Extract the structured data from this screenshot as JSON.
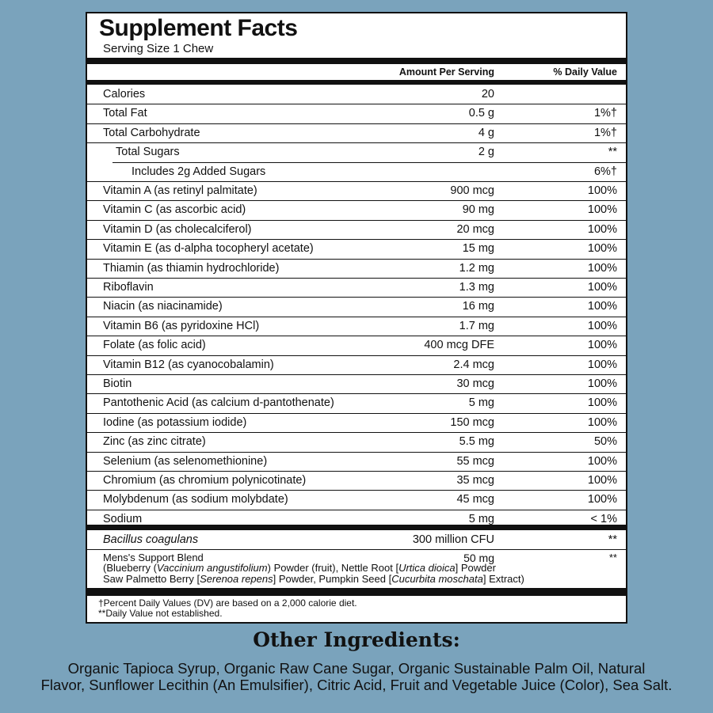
{
  "title": "Supplement Facts",
  "serving_size": "Serving Size 1 Chew",
  "columns": [
    "Amount Per Serving",
    "% Daily Value"
  ],
  "rows": [
    {
      "name": "Calories",
      "amount": "20"
    },
    {
      "name": "Total Fat",
      "amount": "0.5 g",
      "dv": "1%†"
    },
    {
      "name": "Total Carbohydrate",
      "amount": "4 g",
      "dv": "1%†"
    },
    {
      "name": "Total Sugars",
      "amount": "2 g",
      "dv": "**",
      "indent": 1
    },
    {
      "name": "Includes 2g Added Sugars",
      "dv": "6%†",
      "indent": 2
    },
    {
      "name": "Vitamin A (as retinyl palmitate)",
      "amount": "900 mcg",
      "dv": "100%"
    },
    {
      "name": "Vitamin C (as ascorbic acid)",
      "amount": "90 mg",
      "dv": "100%"
    },
    {
      "name": "Vitamin D (as cholecalciferol)",
      "amount": "20 mcg",
      "dv": "100%"
    },
    {
      "name": "Vitamin E (as d-alpha tocopheryl acetate)",
      "amount": "15 mg",
      "dv": "100%"
    },
    {
      "name": "Thiamin (as thiamin hydrochloride)",
      "amount": "1.2 mg",
      "dv": "100%"
    },
    {
      "name": "Riboflavin",
      "amount": "1.3 mg",
      "dv": "100%"
    },
    {
      "name": "Niacin (as niacinamide)",
      "amount": "16 mg",
      "dv": "100%"
    },
    {
      "name": "Vitamin B6 (as pyridoxine HCl)",
      "amount": "1.7 mg",
      "dv": "100%"
    },
    {
      "name": "Folate (as folic acid)",
      "amount": "400 mcg DFE",
      "dv": "100%"
    },
    {
      "name": "Vitamin B12 (as cyanocobalamin)",
      "amount": "2.4 mcg",
      "dv": "100%"
    },
    {
      "name": "Biotin",
      "amount": "30 mcg",
      "dv": "100%"
    },
    {
      "name": "Pantothenic Acid (as calcium d-pantothenate)",
      "amount": "5 mg",
      "dv": "100%"
    },
    {
      "name": "Iodine (as potassium iodide)",
      "amount": "150 mcg",
      "dv": "100%"
    },
    {
      "name": "Zinc (as zinc citrate)",
      "amount": "5.5 mg",
      "dv": "50%"
    },
    {
      "name": "Selenium (as selenomethionine)",
      "amount": "55 mcg",
      "dv": "100%"
    },
    {
      "name": "Chromium (as chromium polynicotinate)",
      "amount": "35 mcg",
      "dv": "100%"
    },
    {
      "name": "Molybdenum (as sodium molybdate)",
      "amount": "45 mcg",
      "dv": "100%"
    },
    {
      "name": "Sodium",
      "amount": "5 mg",
      "dv": "< 1%"
    }
  ],
  "probiotic": {
    "name": "Bacillus coagulans",
    "amount": "300 million CFU",
    "dv": "**"
  },
  "blend": {
    "name": "Mens's Support Blend",
    "amount": "50 mg",
    "dv": "**",
    "lines": [
      [
        {
          "text": "(Blueberry ("
        },
        {
          "text": "Vaccinium angustifolium",
          "italic": true
        },
        {
          "text": ") Powder (fruit), Nettle Root ["
        },
        {
          "text": "Urtica dioica",
          "italic": true
        },
        {
          "text": "] Powder"
        }
      ],
      [
        {
          "text": "Saw Palmetto Berry ["
        },
        {
          "text": "Serenoa repens",
          "italic": true
        },
        {
          "text": "] Powder, Pumpkin Seed ["
        },
        {
          "text": "Cucurbita moschata",
          "italic": true
        },
        {
          "text": "] Extract)"
        }
      ]
    ]
  },
  "footnotes": [
    "†Percent Daily Values (DV) are based on a 2,000 calorie diet.",
    "**Daily Value not established."
  ],
  "other_ingredients": {
    "title": "Other Ingredients:",
    "lines": [
      "Organic Tapioca Syrup, Organic Raw Cane Sugar, Organic Sustainable Palm Oil, Natural",
      "Flavor, Sunflower Lecithin (An Emulsifier), Citric Acid, Fruit and Vegetable Juice (Color), Sea Salt."
    ]
  }
}
